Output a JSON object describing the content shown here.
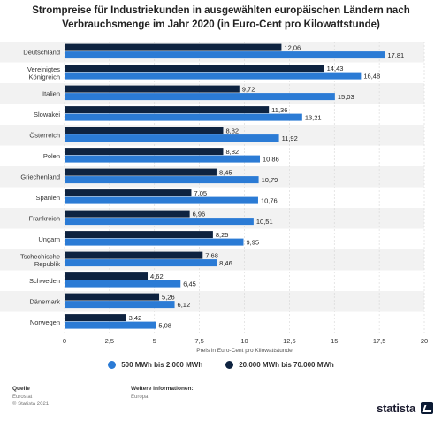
{
  "title_line1": "Strompreise für Industriekunden in ausgewählten europäischen Ländern nach",
  "title_line2": "Verbrauchsmenge im Jahr 2020 (in Euro-Cent pro Kilowattstunde)",
  "legend": [
    {
      "label": "500 MWh bis 2.000 MWh",
      "color": "#2b7bd5"
    },
    {
      "label": "20.000 MWh bis 70.000 MWh",
      "color": "#0e2340"
    }
  ],
  "footer": {
    "source_label": "Quelle",
    "source_line1": "Eurostat",
    "source_line2": "© Statista 2021",
    "info_label": "Weitere Informationen:",
    "info_line1": "Europa",
    "brand": "statista"
  },
  "chart_data": {
    "type": "bar",
    "orientation": "horizontal",
    "categories": [
      "Deutschland",
      "Vereinigtes Königreich",
      "Italien",
      "Slowakei",
      "Österreich",
      "Polen",
      "Griechenland",
      "Spanien",
      "Frankreich",
      "Ungarn",
      "Tschechische Republik",
      "Schweden",
      "Dänemark",
      "Norwegen"
    ],
    "series": [
      {
        "name": "20.000 MWh bis 70.000 MWh",
        "color": "#0e2340",
        "values": [
          12.06,
          14.43,
          9.72,
          11.36,
          8.82,
          8.82,
          8.45,
          7.05,
          6.96,
          8.25,
          7.68,
          4.62,
          5.26,
          3.42
        ],
        "labels": [
          "12,06",
          "14,43",
          "9,72",
          "11,36",
          "8,82",
          "8,82",
          "8,45",
          "7,05",
          "6,96",
          "8,25",
          "7,68",
          "4,62",
          "5,26",
          "3,42"
        ]
      },
      {
        "name": "500 MWh bis 2.000 MWh",
        "color": "#2b7bd5",
        "values": [
          17.81,
          16.48,
          15.03,
          13.21,
          11.92,
          10.86,
          10.79,
          10.76,
          10.51,
          9.95,
          8.46,
          6.45,
          6.12,
          5.08
        ],
        "labels": [
          "17,81",
          "16,48",
          "15,03",
          "13,21",
          "11,92",
          "10,86",
          "10,79",
          "10,76",
          "10,51",
          "9,95",
          "8,46",
          "6,45",
          "6,12",
          "5,08"
        ]
      }
    ],
    "xlim": [
      0,
      20
    ],
    "xticks": [
      0,
      2.5,
      5,
      7.5,
      10,
      12.5,
      15,
      17.5,
      20
    ],
    "xtick_labels": [
      "0",
      "2,5",
      "5",
      "7,5",
      "10",
      "12,5",
      "15",
      "17,5",
      "20"
    ],
    "xlabel": "Preis in Euro-Cent pro Kilowattstunde",
    "grid": true,
    "legend_position": "bottom"
  }
}
